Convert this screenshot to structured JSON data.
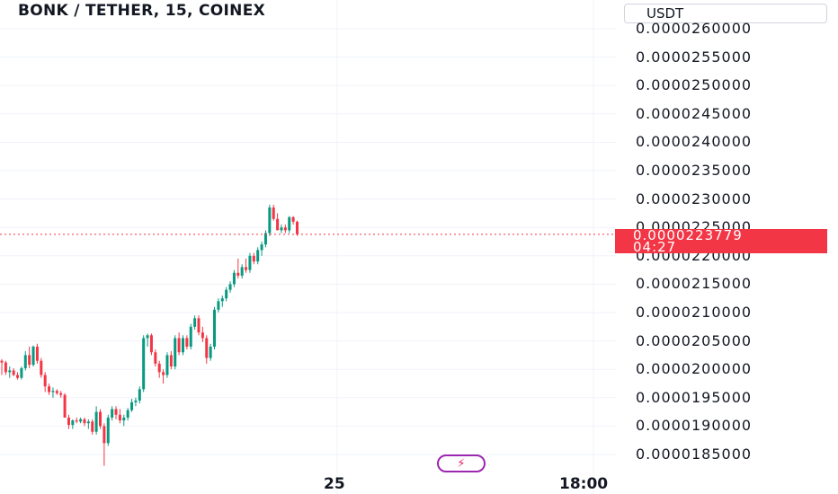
{
  "header": {
    "title": "BONK / TETHER, 15, COINEX"
  },
  "currency_button": {
    "label": "USDT"
  },
  "price_axis": {
    "ticks": [
      "0.0000260000",
      "0.0000255000",
      "0.0000250000",
      "0.0000245000",
      "0.0000240000",
      "0.0000235000",
      "0.0000230000",
      "0.0000225000",
      "0.0000220000",
      "0.0000215000",
      "0.0000210000",
      "0.0000205000",
      "0.0000200000",
      "0.0000195000",
      "0.0000190000",
      "0.0000185000"
    ]
  },
  "last_price": {
    "value": "0.0000223779",
    "countdown": "04:27"
  },
  "time_axis": {
    "labels": [
      "25",
      "18:00"
    ]
  },
  "colors": {
    "up": "#089981",
    "down": "#f23645",
    "grid": "#f0f3fa",
    "accent": "#9c27b0"
  },
  "chart_data": {
    "type": "candlestick",
    "title": "BONK / TETHER, 15, COINEX",
    "ylabel": "USDT",
    "ylim": [
      1.835e-05,
      2.63e-05
    ],
    "last_price": 2.23779e-05,
    "series": [
      {
        "values": [
          [
            2.015e-05,
            2.018e-05,
            1.99e-05,
            2.012e-05
          ],
          [
            2.012e-05,
            2.015e-05,
            1.99e-05,
            1.995e-05
          ],
          [
            1.995e-05,
            2.005e-05,
            1.985e-05,
            1.998e-05
          ],
          [
            1.998e-05,
            2.002e-05,
            1.988e-05,
            1.99e-05
          ],
          [
            1.99e-05,
            1.995e-05,
            1.982e-05,
            1.985e-05
          ],
          [
            1.985e-05,
            2.005e-05,
            1.982e-05,
            2.002e-05
          ],
          [
            2.002e-05,
            2.032e-05,
            1.998e-05,
            2.025e-05
          ],
          [
            2.025e-05,
            2.04e-05,
            2.002e-05,
            2.008e-05
          ],
          [
            2.008e-05,
            2.042e-05,
            2.005e-05,
            2.04e-05
          ],
          [
            2.04e-05,
            2.045e-05,
            2.01e-05,
            2.015e-05
          ],
          [
            2.015e-05,
            2.02e-05,
            1.985e-05,
            1.99e-05
          ],
          [
            1.99e-05,
            1.995e-05,
            1.96e-05,
            1.97e-05
          ],
          [
            1.97e-05,
            1.975e-05,
            1.955e-05,
            1.96e-05
          ],
          [
            1.96e-05,
            1.968e-05,
            1.95e-05,
            1.962e-05
          ],
          [
            1.962e-05,
            1.965e-05,
            1.955e-05,
            1.958e-05
          ],
          [
            1.958e-05,
            1.962e-05,
            1.95e-05,
            1.955e-05
          ],
          [
            1.955e-05,
            1.958e-05,
            1.915e-05,
            1.915e-05
          ],
          [
            1.915e-05,
            1.92e-05,
            1.895e-05,
            1.902e-05
          ],
          [
            1.902e-05,
            1.912e-05,
            1.895e-05,
            1.91e-05
          ],
          [
            1.91e-05,
            1.915e-05,
            1.905e-05,
            1.908e-05
          ],
          [
            1.908e-05,
            1.915e-05,
            1.905e-05,
            1.912e-05
          ],
          [
            1.912e-05,
            1.915e-05,
            1.9e-05,
            1.905e-05
          ],
          [
            1.905e-05,
            1.912e-05,
            1.895e-05,
            1.908e-05
          ],
          [
            1.908e-05,
            1.912e-05,
            1.885e-05,
            1.89e-05
          ],
          [
            1.89e-05,
            1.935e-05,
            1.885e-05,
            1.925e-05
          ],
          [
            1.925e-05,
            1.93e-05,
            1.895e-05,
            1.9e-05
          ],
          [
            1.9e-05,
            1.905e-05,
            1.83e-05,
            1.87e-05
          ],
          [
            1.87e-05,
            1.92e-05,
            1.865e-05,
            1.915e-05
          ],
          [
            1.915e-05,
            1.935e-05,
            1.91e-05,
            1.93e-05
          ],
          [
            1.93e-05,
            1.935e-05,
            1.912e-05,
            1.92e-05
          ],
          [
            1.92e-05,
            1.93e-05,
            1.905e-05,
            1.91e-05
          ],
          [
            1.91e-05,
            1.92e-05,
            1.9e-05,
            1.915e-05
          ],
          [
            1.915e-05,
            1.932e-05,
            1.91e-05,
            1.928e-05
          ],
          [
            1.928e-05,
            1.948e-05,
            1.925e-05,
            1.942e-05
          ],
          [
            1.942e-05,
            1.95e-05,
            1.935e-05,
            1.945e-05
          ],
          [
            1.945e-05,
            1.97e-05,
            1.94e-05,
            1.965e-05
          ],
          [
            1.965e-05,
            2.06e-05,
            1.96e-05,
            2.055e-05
          ],
          [
            2.055e-05,
            2.063e-05,
            2.04e-05,
            2.06e-05
          ],
          [
            2.06e-05,
            2.063e-05,
            2.025e-05,
            2.03e-05
          ],
          [
            2.03e-05,
            2.035e-05,
            2.005e-05,
            2.01e-05
          ],
          [
            2.01e-05,
            2.015e-05,
            1.985e-05,
            1.995e-05
          ],
          [
            1.995e-05,
            2e-05,
            1.975e-05,
            1.99e-05
          ],
          [
            1.99e-05,
            2.03e-05,
            1.985e-05,
            2.025e-05
          ],
          [
            2.025e-05,
            2.032e-05,
            2e-05,
            2.005e-05
          ],
          [
            2.005e-05,
            2.06e-05,
            2e-05,
            2.055e-05
          ],
          [
            2.055e-05,
            2.065e-05,
            2.025e-05,
            2.03e-05
          ],
          [
            2.03e-05,
            2.06e-05,
            2.025e-05,
            2.055e-05
          ],
          [
            2.055e-05,
            2.06e-05,
            2.035e-05,
            2.04e-05
          ],
          [
            2.04e-05,
            2.08e-05,
            2.035e-05,
            2.075e-05
          ],
          [
            2.075e-05,
            2.095e-05,
            2.07e-05,
            2.09e-05
          ],
          [
            2.09e-05,
            2.095e-05,
            2.06e-05,
            2.065e-05
          ],
          [
            2.065e-05,
            2.075e-05,
            2.048e-05,
            2.055e-05
          ],
          [
            2.055e-05,
            2.06e-05,
            2.01e-05,
            2.02e-05
          ],
          [
            2.02e-05,
            2.045e-05,
            2.015e-05,
            2.04e-05
          ],
          [
            2.04e-05,
            2.11e-05,
            2.035e-05,
            2.105e-05
          ],
          [
            2.105e-05,
            2.125e-05,
            2.1e-05,
            2.12e-05
          ],
          [
            2.12e-05,
            2.13e-05,
            2.11e-05,
            2.125e-05
          ],
          [
            2.125e-05,
            2.145e-05,
            2.12e-05,
            2.14e-05
          ],
          [
            2.14e-05,
            2.155e-05,
            2.135e-05,
            2.15e-05
          ],
          [
            2.15e-05,
            2.175e-05,
            2.145e-05,
            2.17e-05
          ],
          [
            2.17e-05,
            2.195e-05,
            2.16e-05,
            2.165e-05
          ],
          [
            2.165e-05,
            2.185e-05,
            2.16e-05,
            2.18e-05
          ],
          [
            2.18e-05,
            2.195e-05,
            2.17e-05,
            2.175e-05
          ],
          [
            2.175e-05,
            2.205e-05,
            2.17e-05,
            2.2e-05
          ],
          [
            2.2e-05,
            2.205e-05,
            2.185e-05,
            2.19e-05
          ],
          [
            2.19e-05,
            2.215e-05,
            2.185e-05,
            2.21e-05
          ],
          [
            2.21e-05,
            2.225e-05,
            2.2e-05,
            2.22e-05
          ],
          [
            2.22e-05,
            2.245e-05,
            2.215e-05,
            2.24e-05
          ],
          [
            2.24e-05,
            2.29e-05,
            2.235e-05,
            2.285e-05
          ],
          [
            2.285e-05,
            2.29e-05,
            2.262e-05,
            2.265e-05
          ],
          [
            2.265e-05,
            2.275e-05,
            2.245e-05,
            2.245e-05
          ],
          [
            2.245e-05,
            2.255e-05,
            2.24e-05,
            2.25e-05
          ],
          [
            2.25e-05,
            2.255e-05,
            2.24e-05,
            2.245e-05
          ],
          [
            2.245e-05,
            2.27e-05,
            2.24e-05,
            2.268e-05
          ],
          [
            2.268e-05,
            2.27e-05,
            2.255e-05,
            2.26e-05
          ],
          [
            2.26e-05,
            2.262e-05,
            2.235e-05,
            2.238e-05
          ]
        ]
      }
    ]
  }
}
